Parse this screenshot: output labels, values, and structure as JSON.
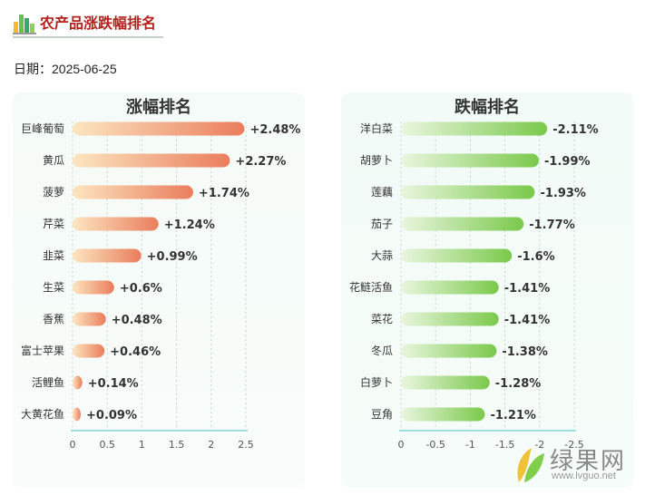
{
  "header": {
    "title": "农产品涨跌幅排名"
  },
  "date": {
    "label": "日期：",
    "value": "2025-06-25"
  },
  "watermark": {
    "cn": "绿果网",
    "en": "www.lvguo.net"
  },
  "colors": {
    "title_red": "#b4211c",
    "up_start": "#fce6c0",
    "up_end": "#ea7d5c",
    "down_start": "#eaf6df",
    "down_end": "#7ac94b",
    "axis_line": "#7fd8dc"
  },
  "chart_data": [
    {
      "type": "bar",
      "orientation": "horizontal",
      "title": "涨幅排名",
      "categories": [
        "巨峰葡萄",
        "黄瓜",
        "菠萝",
        "芹菜",
        "韭菜",
        "生菜",
        "香蕉",
        "富士苹果",
        "活鲤鱼",
        "大黄花鱼"
      ],
      "values": [
        2.48,
        2.27,
        1.74,
        1.24,
        0.99,
        0.6,
        0.48,
        0.46,
        0.14,
        0.09
      ],
      "labels": [
        "+2.48%",
        "+2.27%",
        "+1.74%",
        "+1.24%",
        "+0.99%",
        "+0.6%",
        "+0.48%",
        "+0.46%",
        "+0.14%",
        "+0.09%"
      ],
      "xticks": [
        "0",
        "0.5",
        "1",
        "1.5",
        "2",
        "2.5"
      ],
      "xlim": [
        0,
        2.5
      ],
      "grid": true
    },
    {
      "type": "bar",
      "orientation": "horizontal",
      "title": "跌幅排名",
      "categories": [
        "洋白菜",
        "胡萝卜",
        "莲藕",
        "茄子",
        "大蒜",
        "花鲢活鱼",
        "菜花",
        "冬瓜",
        "白萝卜",
        "豆角"
      ],
      "values": [
        -2.11,
        -1.99,
        -1.93,
        -1.77,
        -1.6,
        -1.41,
        -1.41,
        -1.38,
        -1.28,
        -1.21
      ],
      "labels": [
        "-2.11%",
        "-1.99%",
        "-1.93%",
        "-1.77%",
        "-1.6%",
        "-1.41%",
        "-1.41%",
        "-1.38%",
        "-1.28%",
        "-1.21%"
      ],
      "xticks": [
        "0",
        "-0.5",
        "-1",
        "-1.5",
        "-2",
        "-2.5"
      ],
      "xlim": [
        0,
        -2.5
      ],
      "grid": true
    }
  ]
}
